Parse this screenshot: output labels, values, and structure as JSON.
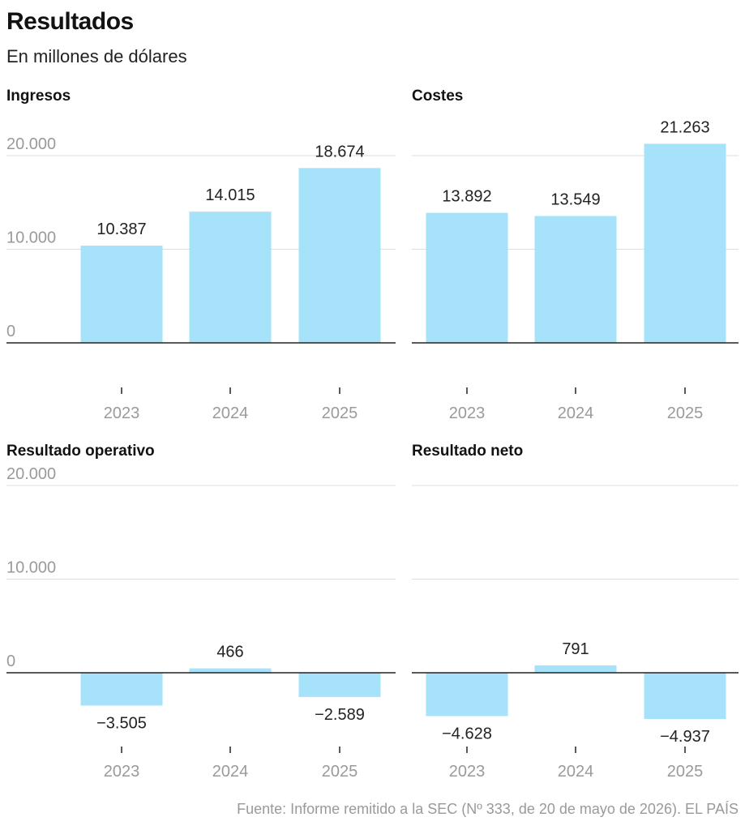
{
  "header": {
    "title": "Resultados",
    "subtitle": "En millones de dólares"
  },
  "source": "Fuente: Informe remitido a la SEC (Nº 333, de 20 de mayo de 2026). EL PAÍS",
  "colors": {
    "bar": "#a6e3fb",
    "grid": "#dddddd",
    "axis": "#222222",
    "muted": "#9a9a9a"
  },
  "chart_data": [
    {
      "type": "bar",
      "title": "Ingresos",
      "categories": [
        "2023",
        "2024",
        "2025"
      ],
      "values": [
        10387,
        14015,
        18674
      ],
      "value_labels": [
        "10.387",
        "14.015",
        "18.674"
      ],
      "yticks": [
        0,
        10000,
        20000
      ],
      "ytick_labels": [
        "0",
        "10.000",
        "20.000"
      ],
      "ylim": [
        0,
        20000
      ],
      "grid": true
    },
    {
      "type": "bar",
      "title": "Costes",
      "categories": [
        "2023",
        "2024",
        "2025"
      ],
      "values": [
        13892,
        13549,
        21263
      ],
      "value_labels": [
        "13.892",
        "13.549",
        "21.263"
      ],
      "yticks": [
        0,
        10000,
        20000
      ],
      "ytick_labels": [
        "",
        "",
        ""
      ],
      "ylim": [
        0,
        20000
      ],
      "grid": true
    },
    {
      "type": "bar",
      "title": "Resultado operativo",
      "categories": [
        "2023",
        "2024",
        "2025"
      ],
      "values": [
        -3505,
        466,
        -2589
      ],
      "value_labels": [
        "−3.505",
        "466",
        "−2.589"
      ],
      "yticks": [
        0,
        10000,
        20000
      ],
      "ytick_labels": [
        "0",
        "10.000",
        "20.000"
      ],
      "ylim": [
        -8000,
        20000
      ],
      "grid": true
    },
    {
      "type": "bar",
      "title": "Resultado neto",
      "categories": [
        "2023",
        "2024",
        "2025"
      ],
      "values": [
        -4628,
        791,
        -4937
      ],
      "value_labels": [
        "−4.628",
        "791",
        "−4.937"
      ],
      "yticks": [
        0,
        10000,
        20000
      ],
      "ytick_labels": [
        "",
        "",
        ""
      ],
      "ylim": [
        -8000,
        20000
      ],
      "grid": true
    }
  ]
}
